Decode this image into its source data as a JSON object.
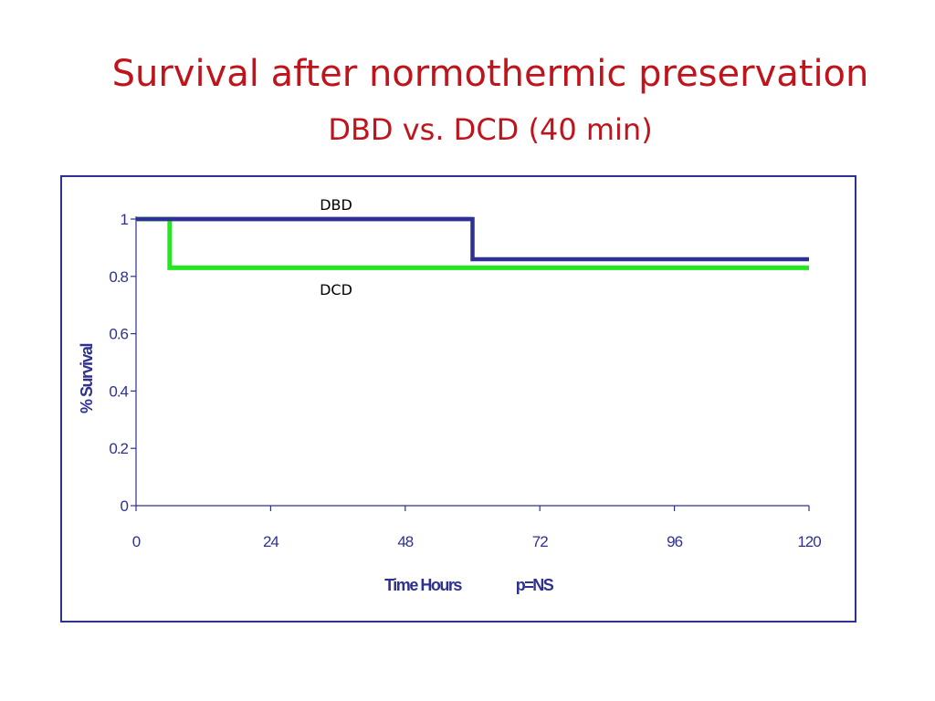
{
  "slide": {
    "title": "Survival after normothermic preservation",
    "subtitle": "DBD vs. DCD (40 min)"
  },
  "colors": {
    "title": "#c0141c",
    "axis": "#2e3192",
    "dbd": "#2e3192",
    "dcd": "#22e81e"
  },
  "chart_data": {
    "type": "line",
    "step": true,
    "xlabel": "Time Hours",
    "annotation": "p=NS",
    "ylabel": "% Survival",
    "xlim": [
      0,
      120
    ],
    "ylim": [
      0,
      1
    ],
    "xticks": [
      0,
      24,
      48,
      72,
      96,
      120
    ],
    "yticks": [
      0,
      0.2,
      0.4,
      0.6,
      0.8,
      1
    ],
    "ytick_labels": [
      "0",
      "0.2",
      "0.4",
      "0.6",
      "0.8",
      "1"
    ],
    "grid": false,
    "series": [
      {
        "name": "DBD",
        "x": [
          0,
          60,
          120
        ],
        "y": [
          1,
          0.86,
          0.86
        ]
      },
      {
        "name": "DCD",
        "x": [
          0,
          6,
          120
        ],
        "y": [
          1,
          0.83,
          0.83
        ]
      }
    ]
  }
}
